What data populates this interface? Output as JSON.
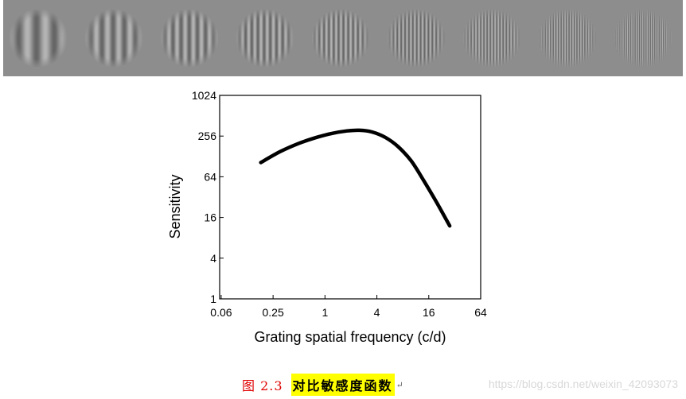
{
  "stimulus_strip": {
    "background": "#8d8d8d",
    "patches": [
      {
        "relative_frequency": 1
      },
      {
        "relative_frequency": 1.6
      },
      {
        "relative_frequency": 2.2
      },
      {
        "relative_frequency": 2.9
      },
      {
        "relative_frequency": 3.7
      },
      {
        "relative_frequency": 4.6
      },
      {
        "relative_frequency": 5.6
      },
      {
        "relative_frequency": 6.8
      },
      {
        "relative_frequency": 8.2
      }
    ]
  },
  "chart_data": {
    "type": "line",
    "title": "",
    "xlabel": "Grating spatial frequency (c/d)",
    "ylabel": "Sensitivity",
    "xscale": "log",
    "yscale": "log",
    "xlim": [
      0.06,
      64
    ],
    "ylim": [
      1,
      1024
    ],
    "xticks": [
      "0.06",
      "0.25",
      "1",
      "4",
      "16",
      "64"
    ],
    "xtick_values": [
      0.0625,
      0.25,
      1,
      4,
      16,
      64
    ],
    "yticks": [
      "1",
      "4",
      "16",
      "64",
      "256",
      "1024"
    ],
    "ytick_values": [
      1,
      4,
      16,
      64,
      256,
      1024
    ],
    "grid": false,
    "series": [
      {
        "color": "#000000",
        "x": [
          0.18,
          0.3,
          0.5,
          0.8,
          1.2,
          1.8,
          2.5,
          3.5,
          5,
          7,
          10,
          14,
          20,
          28
        ],
        "y": [
          104,
          150,
          200,
          245,
          280,
          305,
          312,
          295,
          245,
          180,
          110,
          56,
          26,
          12
        ]
      }
    ]
  },
  "caption": {
    "number": "图 2.3",
    "title": "对比敏感度函数",
    "para_mark": "↵"
  },
  "watermark": "https://blog.csdn.net/weixin_42093073"
}
